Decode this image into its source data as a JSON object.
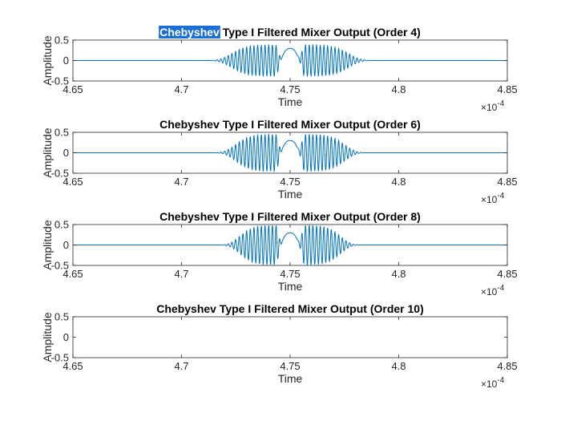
{
  "figure": {
    "highlighted_word": "Chebyshev",
    "highlight_color": "#1a6fd6",
    "line_color": "#0072bd",
    "axis_color": "#262626"
  },
  "chart_data": [
    {
      "type": "line",
      "title": "Chebyshev Type I Filtered Mixer Output (Order 4)",
      "xlabel": "Time",
      "ylabel": "Amplitude",
      "x_exponent_label": "×10",
      "x_exponent": "-4",
      "xlim": [
        4.65,
        4.85
      ],
      "ylim": [
        -0.5,
        0.5
      ],
      "xticks": [
        "4.65",
        "4.7",
        "4.75",
        "4.8",
        "4.85"
      ],
      "yticks": [
        "0.5",
        "0",
        "-0.5"
      ],
      "series": [
        {
          "shape": "modulated-burst",
          "x_units": "x1e-4 s",
          "center": 4.75,
          "peak": 0.38,
          "envelope_width": 0.028,
          "inner_gap": 0.0055,
          "carrier_cycles_per_unit": 590,
          "center_lobe": 0.3
        }
      ]
    },
    {
      "type": "line",
      "title": "Chebyshev Type I Filtered Mixer Output (Order 6)",
      "xlabel": "Time",
      "ylabel": "Amplitude",
      "x_exponent_label": "×10",
      "x_exponent": "-4",
      "xlim": [
        4.65,
        4.85
      ],
      "ylim": [
        -0.5,
        0.5
      ],
      "xticks": [
        "4.65",
        "4.7",
        "4.75",
        "4.8",
        "4.85"
      ],
      "yticks": [
        "0.5",
        "0",
        "-0.5"
      ],
      "series": [
        {
          "shape": "modulated-burst",
          "x_units": "x1e-4 s",
          "center": 4.75,
          "peak": 0.45,
          "envelope_width": 0.026,
          "inner_gap": 0.0055,
          "carrier_cycles_per_unit": 590,
          "center_lobe": 0.3
        }
      ]
    },
    {
      "type": "line",
      "title": "Chebyshev Type I Filtered Mixer Output (Order 8)",
      "xlabel": "Time",
      "ylabel": "Amplitude",
      "x_exponent_label": "×10",
      "x_exponent": "-4",
      "xlim": [
        4.65,
        4.85
      ],
      "ylim": [
        -0.5,
        0.5
      ],
      "xticks": [
        "4.65",
        "4.7",
        "4.75",
        "4.8",
        "4.85"
      ],
      "yticks": [
        "0.5",
        "0",
        "-0.5"
      ],
      "series": [
        {
          "shape": "modulated-burst",
          "x_units": "x1e-4 s",
          "center": 4.75,
          "peak": 0.48,
          "envelope_width": 0.024,
          "inner_gap": 0.0055,
          "carrier_cycles_per_unit": 590,
          "center_lobe": 0.3
        }
      ]
    },
    {
      "type": "line",
      "title": "Chebyshev Type I Filtered Mixer Output (Order 10)",
      "xlabel": "Time",
      "ylabel": "Amplitude",
      "x_exponent_label": "×10",
      "x_exponent": "-4",
      "xlim": [
        4.65,
        4.85
      ],
      "ylim": [
        -0.5,
        0.5
      ],
      "xticks": [
        "4.65",
        "4.7",
        "4.75",
        "4.8",
        "4.85"
      ],
      "yticks": [
        "0.5",
        "0",
        "-0.5"
      ],
      "series": []
    }
  ]
}
